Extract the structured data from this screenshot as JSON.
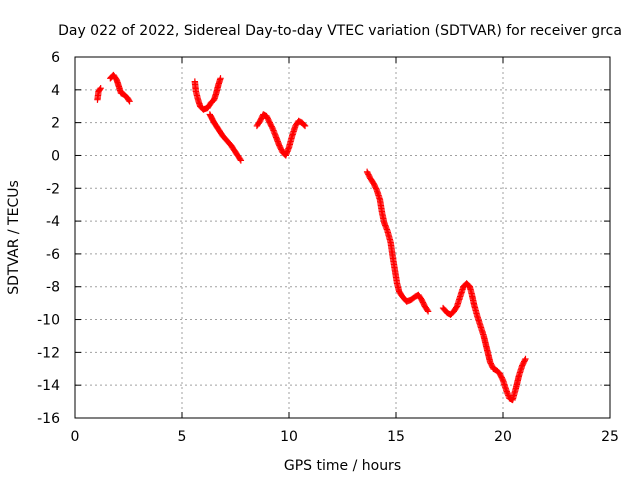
{
  "chart_data": {
    "type": "scatter",
    "title": "Day 022 of 2022, Sidereal Day-to-day VTEC variation (SDTVAR) for receiver grca",
    "xlabel": "GPS time / hours",
    "ylabel": "SDTVAR / TECUs",
    "xlim": [
      0,
      25
    ],
    "ylim": [
      -16,
      6
    ],
    "xticks": [
      0,
      5,
      10,
      15,
      20,
      25
    ],
    "yticks": [
      -16,
      -14,
      -12,
      -10,
      -8,
      -6,
      -4,
      -2,
      0,
      2,
      4,
      6
    ],
    "grid": true,
    "marker": "plus",
    "color": "#ff0000",
    "series": [
      {
        "segments": [
          [
            [
              1.05,
              3.4
            ],
            [
              1.1,
              3.9
            ],
            [
              1.2,
              4.1
            ]
          ],
          [
            [
              1.65,
              4.7
            ],
            [
              1.8,
              4.9
            ],
            [
              1.95,
              4.6
            ],
            [
              2.05,
              4.2
            ],
            [
              2.15,
              3.8
            ],
            [
              2.3,
              3.7
            ],
            [
              2.45,
              3.5
            ],
            [
              2.55,
              3.3
            ]
          ],
          [
            [
              5.6,
              4.5
            ],
            [
              5.65,
              3.9
            ],
            [
              5.75,
              3.4
            ],
            [
              5.85,
              3.0
            ],
            [
              6.0,
              2.8
            ],
            [
              6.2,
              2.9
            ],
            [
              6.35,
              3.2
            ],
            [
              6.5,
              3.4
            ],
            [
              6.6,
              3.8
            ],
            [
              6.7,
              4.3
            ],
            [
              6.8,
              4.7
            ]
          ],
          [
            [
              6.3,
              2.5
            ],
            [
              6.5,
              2.0
            ],
            [
              6.7,
              1.6
            ],
            [
              6.9,
              1.2
            ],
            [
              7.1,
              0.9
            ],
            [
              7.3,
              0.6
            ],
            [
              7.45,
              0.3
            ],
            [
              7.6,
              0.0
            ],
            [
              7.75,
              -0.3
            ]
          ],
          [
            [
              8.5,
              1.8
            ],
            [
              8.65,
              2.1
            ],
            [
              8.8,
              2.5
            ],
            [
              8.95,
              2.4
            ],
            [
              9.1,
              2.0
            ],
            [
              9.25,
              1.6
            ],
            [
              9.4,
              1.1
            ],
            [
              9.55,
              0.6
            ],
            [
              9.7,
              0.2
            ],
            [
              9.85,
              0.0
            ],
            [
              10.0,
              0.5
            ],
            [
              10.15,
              1.2
            ],
            [
              10.3,
              1.8
            ],
            [
              10.45,
              2.1
            ],
            [
              10.6,
              2.0
            ],
            [
              10.75,
              1.8
            ]
          ],
          [
            [
              13.65,
              -1.0
            ],
            [
              13.8,
              -1.4
            ],
            [
              13.95,
              -1.7
            ],
            [
              14.1,
              -2.1
            ],
            [
              14.25,
              -2.7
            ],
            [
              14.35,
              -3.5
            ],
            [
              14.45,
              -4.1
            ],
            [
              14.6,
              -4.6
            ],
            [
              14.75,
              -5.3
            ],
            [
              14.85,
              -6.2
            ],
            [
              14.95,
              -7.0
            ],
            [
              15.05,
              -7.8
            ],
            [
              15.15,
              -8.3
            ],
            [
              15.3,
              -8.6
            ],
            [
              15.5,
              -8.9
            ],
            [
              15.7,
              -8.8
            ],
            [
              15.9,
              -8.6
            ],
            [
              16.05,
              -8.5
            ],
            [
              16.2,
              -8.8
            ],
            [
              16.35,
              -9.2
            ],
            [
              16.5,
              -9.5
            ]
          ],
          [
            [
              17.2,
              -9.3
            ],
            [
              17.4,
              -9.6
            ],
            [
              17.55,
              -9.7
            ],
            [
              17.7,
              -9.5
            ],
            [
              17.85,
              -9.2
            ],
            [
              18.0,
              -8.6
            ],
            [
              18.15,
              -8.0
            ],
            [
              18.3,
              -7.8
            ],
            [
              18.45,
              -8.0
            ],
            [
              18.55,
              -8.5
            ],
            [
              18.65,
              -9.1
            ],
            [
              18.8,
              -9.8
            ],
            [
              18.95,
              -10.4
            ],
            [
              19.1,
              -11.0
            ],
            [
              19.25,
              -11.8
            ],
            [
              19.4,
              -12.6
            ],
            [
              19.55,
              -13.0
            ],
            [
              19.7,
              -13.1
            ],
            [
              19.85,
              -13.3
            ],
            [
              20.0,
              -13.7
            ],
            [
              20.15,
              -14.3
            ],
            [
              20.3,
              -14.8
            ],
            [
              20.45,
              -14.9
            ],
            [
              20.6,
              -14.2
            ],
            [
              20.75,
              -13.4
            ],
            [
              20.9,
              -12.8
            ],
            [
              21.05,
              -12.4
            ]
          ]
        ]
      }
    ]
  }
}
